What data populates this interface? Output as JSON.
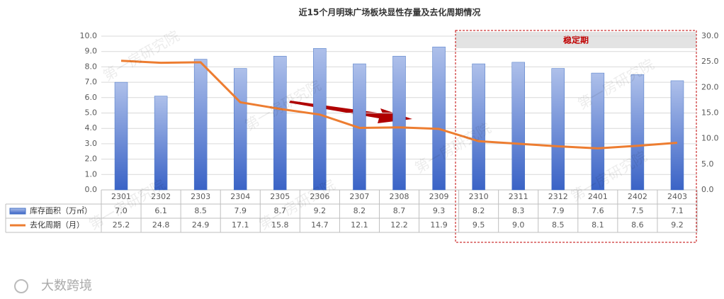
{
  "chart_data": {
    "type": "bar-line-table",
    "title": "近15个月明珠广场板块显性存量及去化周期情况",
    "annotation": "稳定期",
    "watermark": "第一房研究院",
    "logo": "大数跨境",
    "categories": [
      "2301",
      "2302",
      "2303",
      "2304",
      "2305",
      "2306",
      "2307",
      "2308",
      "2309",
      "2310",
      "2311",
      "2312",
      "2401",
      "2402",
      "2403"
    ],
    "series": [
      {
        "name": "库存面积（万㎡）",
        "type": "bar",
        "color": "#4472c4",
        "values": [
          7.0,
          6.1,
          8.5,
          7.9,
          8.7,
          9.2,
          8.2,
          8.7,
          9.3,
          8.2,
          8.3,
          7.9,
          7.6,
          7.5,
          7.1
        ],
        "value_labels": [
          "7.0",
          "6.1",
          "8.5",
          "7.9",
          "8.7",
          "9.2",
          "8.2",
          "8.7",
          "9.3",
          "8.2",
          "8.3",
          "7.9",
          "7.6",
          "7.5",
          "7.1"
        ]
      },
      {
        "name": "去化周期（月）",
        "type": "line",
        "axis": "y2",
        "color": "#ed7d31",
        "values": [
          25.2,
          24.8,
          24.9,
          17.1,
          15.8,
          14.7,
          12.1,
          12.2,
          11.9,
          9.5,
          9.0,
          8.5,
          8.1,
          8.6,
          9.2
        ],
        "value_labels": [
          "25.2",
          "24.8",
          "24.9",
          "17.1",
          "15.8",
          "14.7",
          "12.1",
          "12.2",
          "11.9",
          "9.5",
          "9.0",
          "8.5",
          "8.1",
          "8.6",
          "9.2"
        ]
      }
    ],
    "ylim": [
      0,
      10
    ],
    "yticks": [
      {
        "value": 0,
        "label": "0.0"
      },
      {
        "value": 1,
        "label": "1.0"
      },
      {
        "value": 2,
        "label": "2.0"
      },
      {
        "value": 3,
        "label": "3.0"
      },
      {
        "value": 4,
        "label": "4.0"
      },
      {
        "value": 5,
        "label": "5.0"
      },
      {
        "value": 6,
        "label": "6.0"
      },
      {
        "value": 7,
        "label": "7.0"
      },
      {
        "value": 8,
        "label": "8.0"
      },
      {
        "value": 9,
        "label": "9.0"
      },
      {
        "value": 10,
        "label": "10.0"
      }
    ],
    "y2lim": [
      0,
      30
    ],
    "y2ticks": [
      {
        "value": 0,
        "label": "0.0"
      },
      {
        "value": 5,
        "label": "5.0"
      },
      {
        "value": 10,
        "label": "10.0"
      },
      {
        "value": 15,
        "label": "15.0"
      },
      {
        "value": 20,
        "label": "20.0"
      },
      {
        "value": 25,
        "label": "25.0"
      },
      {
        "value": 30,
        "label": "30.0"
      }
    ],
    "grid": true
  }
}
